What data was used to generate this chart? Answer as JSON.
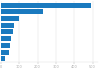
{
  "values": [
    494,
    231,
    96,
    70,
    63,
    55,
    50,
    45,
    20
  ],
  "bar_color": "#1a7abf",
  "background_color": "#ffffff",
  "xlim": [
    0,
    530
  ],
  "tick_color": "#aaaaaa",
  "grid_color": "#dddddd",
  "bar_height": 0.75
}
